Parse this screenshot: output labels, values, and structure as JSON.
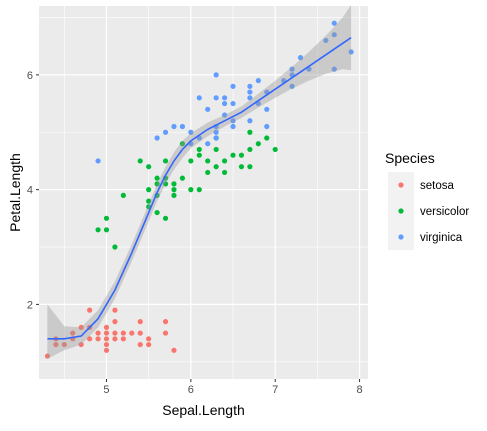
{
  "chart_data": {
    "type": "scatter",
    "title": "",
    "xlabel": "Sepal.Length",
    "ylabel": "Petal.Length",
    "xlim": [
      4.2,
      8.1
    ],
    "ylim": [
      0.7,
      7.2
    ],
    "x_ticks": [
      5,
      6,
      7,
      8
    ],
    "y_ticks": [
      2,
      4,
      6
    ],
    "grid": true,
    "legend": {
      "title": "Species",
      "placement": "right",
      "entries": [
        "setosa",
        "versicolor",
        "virginica"
      ]
    },
    "colors": {
      "setosa": "#F8766D",
      "versicolor": "#00BA38",
      "virginica": "#619CFF",
      "smooth_line": "#3366FF",
      "smooth_band": "#999999",
      "panel": "#EBEBEB"
    },
    "series": [
      {
        "name": "setosa",
        "points": [
          [
            4.3,
            1.1
          ],
          [
            4.4,
            1.3
          ],
          [
            4.4,
            1.4
          ],
          [
            4.5,
            1.3
          ],
          [
            4.6,
            1.4
          ],
          [
            4.6,
            1.5
          ],
          [
            4.7,
            1.3
          ],
          [
            4.7,
            1.6
          ],
          [
            4.8,
            1.4
          ],
          [
            4.8,
            1.6
          ],
          [
            4.8,
            1.9
          ],
          [
            4.9,
            1.4
          ],
          [
            4.9,
            1.5
          ],
          [
            5.0,
            1.2
          ],
          [
            5.0,
            1.3
          ],
          [
            5.0,
            1.4
          ],
          [
            5.0,
            1.5
          ],
          [
            5.0,
            1.6
          ],
          [
            5.1,
            1.4
          ],
          [
            5.1,
            1.5
          ],
          [
            5.1,
            1.7
          ],
          [
            5.1,
            1.9
          ],
          [
            5.2,
            1.4
          ],
          [
            5.2,
            1.5
          ],
          [
            5.3,
            1.5
          ],
          [
            5.4,
            1.3
          ],
          [
            5.4,
            1.5
          ],
          [
            5.4,
            1.7
          ],
          [
            5.5,
            1.3
          ],
          [
            5.5,
            1.4
          ],
          [
            5.7,
            1.5
          ],
          [
            5.7,
            1.7
          ],
          [
            5.8,
            1.2
          ]
        ]
      },
      {
        "name": "versicolor",
        "points": [
          [
            4.9,
            3.3
          ],
          [
            5.0,
            3.3
          ],
          [
            5.0,
            3.5
          ],
          [
            5.1,
            3.0
          ],
          [
            5.2,
            3.9
          ],
          [
            5.4,
            4.5
          ],
          [
            5.5,
            3.7
          ],
          [
            5.5,
            3.8
          ],
          [
            5.5,
            4.0
          ],
          [
            5.5,
            4.4
          ],
          [
            5.6,
            3.6
          ],
          [
            5.6,
            3.9
          ],
          [
            5.6,
            4.1
          ],
          [
            5.6,
            4.2
          ],
          [
            5.7,
            3.5
          ],
          [
            5.7,
            4.1
          ],
          [
            5.7,
            4.2
          ],
          [
            5.7,
            4.5
          ],
          [
            5.8,
            3.9
          ],
          [
            5.8,
            4.0
          ],
          [
            5.8,
            4.1
          ],
          [
            5.9,
            4.2
          ],
          [
            5.9,
            4.8
          ],
          [
            6.0,
            4.0
          ],
          [
            6.0,
            4.5
          ],
          [
            6.1,
            4.0
          ],
          [
            6.1,
            4.6
          ],
          [
            6.1,
            4.7
          ],
          [
            6.2,
            4.3
          ],
          [
            6.2,
            4.5
          ],
          [
            6.3,
            4.4
          ],
          [
            6.3,
            4.7
          ],
          [
            6.3,
            4.9
          ],
          [
            6.4,
            4.3
          ],
          [
            6.4,
            4.5
          ],
          [
            6.5,
            4.6
          ],
          [
            6.6,
            4.4
          ],
          [
            6.6,
            4.6
          ],
          [
            6.7,
            4.4
          ],
          [
            6.7,
            4.7
          ],
          [
            6.7,
            5.0
          ],
          [
            6.8,
            4.8
          ],
          [
            6.9,
            4.9
          ],
          [
            7.0,
            4.7
          ]
        ]
      },
      {
        "name": "virginica",
        "points": [
          [
            4.9,
            4.5
          ],
          [
            5.6,
            4.9
          ],
          [
            5.7,
            5.0
          ],
          [
            5.8,
            5.1
          ],
          [
            5.9,
            5.1
          ],
          [
            6.0,
            4.8
          ],
          [
            6.0,
            5.0
          ],
          [
            6.1,
            4.9
          ],
          [
            6.1,
            5.6
          ],
          [
            6.2,
            4.8
          ],
          [
            6.2,
            5.4
          ],
          [
            6.3,
            4.9
          ],
          [
            6.3,
            5.0
          ],
          [
            6.3,
            5.1
          ],
          [
            6.3,
            5.6
          ],
          [
            6.3,
            6.0
          ],
          [
            6.4,
            5.3
          ],
          [
            6.4,
            5.5
          ],
          [
            6.4,
            5.6
          ],
          [
            6.5,
            5.1
          ],
          [
            6.5,
            5.2
          ],
          [
            6.5,
            5.5
          ],
          [
            6.5,
            5.8
          ],
          [
            6.7,
            5.2
          ],
          [
            6.7,
            5.6
          ],
          [
            6.7,
            5.7
          ],
          [
            6.7,
            5.8
          ],
          [
            6.8,
            5.5
          ],
          [
            6.8,
            5.9
          ],
          [
            6.9,
            5.1
          ],
          [
            6.9,
            5.4
          ],
          [
            6.9,
            5.7
          ],
          [
            7.1,
            5.9
          ],
          [
            7.2,
            5.8
          ],
          [
            7.2,
            6.0
          ],
          [
            7.2,
            6.1
          ],
          [
            7.3,
            6.3
          ],
          [
            7.4,
            6.1
          ],
          [
            7.6,
            6.6
          ],
          [
            7.7,
            6.1
          ],
          [
            7.7,
            6.7
          ],
          [
            7.7,
            6.9
          ],
          [
            7.9,
            6.4
          ]
        ]
      }
    ],
    "smooth": {
      "method": "loess",
      "x": [
        4.3,
        4.5,
        4.7,
        4.9,
        5.1,
        5.3,
        5.5,
        5.6,
        5.7,
        5.8,
        5.9,
        6.0,
        6.2,
        6.4,
        6.6,
        6.8,
        7.0,
        7.2,
        7.4,
        7.6,
        7.8,
        7.9
      ],
      "y": [
        1.4,
        1.4,
        1.45,
        1.75,
        2.25,
        2.9,
        3.6,
        3.95,
        4.25,
        4.5,
        4.7,
        4.85,
        5.05,
        5.2,
        5.35,
        5.55,
        5.75,
        5.95,
        6.15,
        6.35,
        6.55,
        6.65
      ],
      "ymin": [
        1.05,
        1.2,
        1.3,
        1.6,
        2.1,
        2.75,
        3.45,
        3.8,
        4.1,
        4.35,
        4.55,
        4.72,
        4.93,
        5.1,
        5.25,
        5.43,
        5.6,
        5.76,
        5.9,
        6.02,
        6.1,
        6.08
      ],
      "ymax": [
        2.0,
        1.62,
        1.6,
        1.9,
        2.4,
        3.05,
        3.75,
        4.1,
        4.4,
        4.65,
        4.85,
        4.98,
        5.17,
        5.3,
        5.45,
        5.67,
        5.9,
        6.14,
        6.4,
        6.68,
        7.0,
        7.22
      ]
    }
  }
}
